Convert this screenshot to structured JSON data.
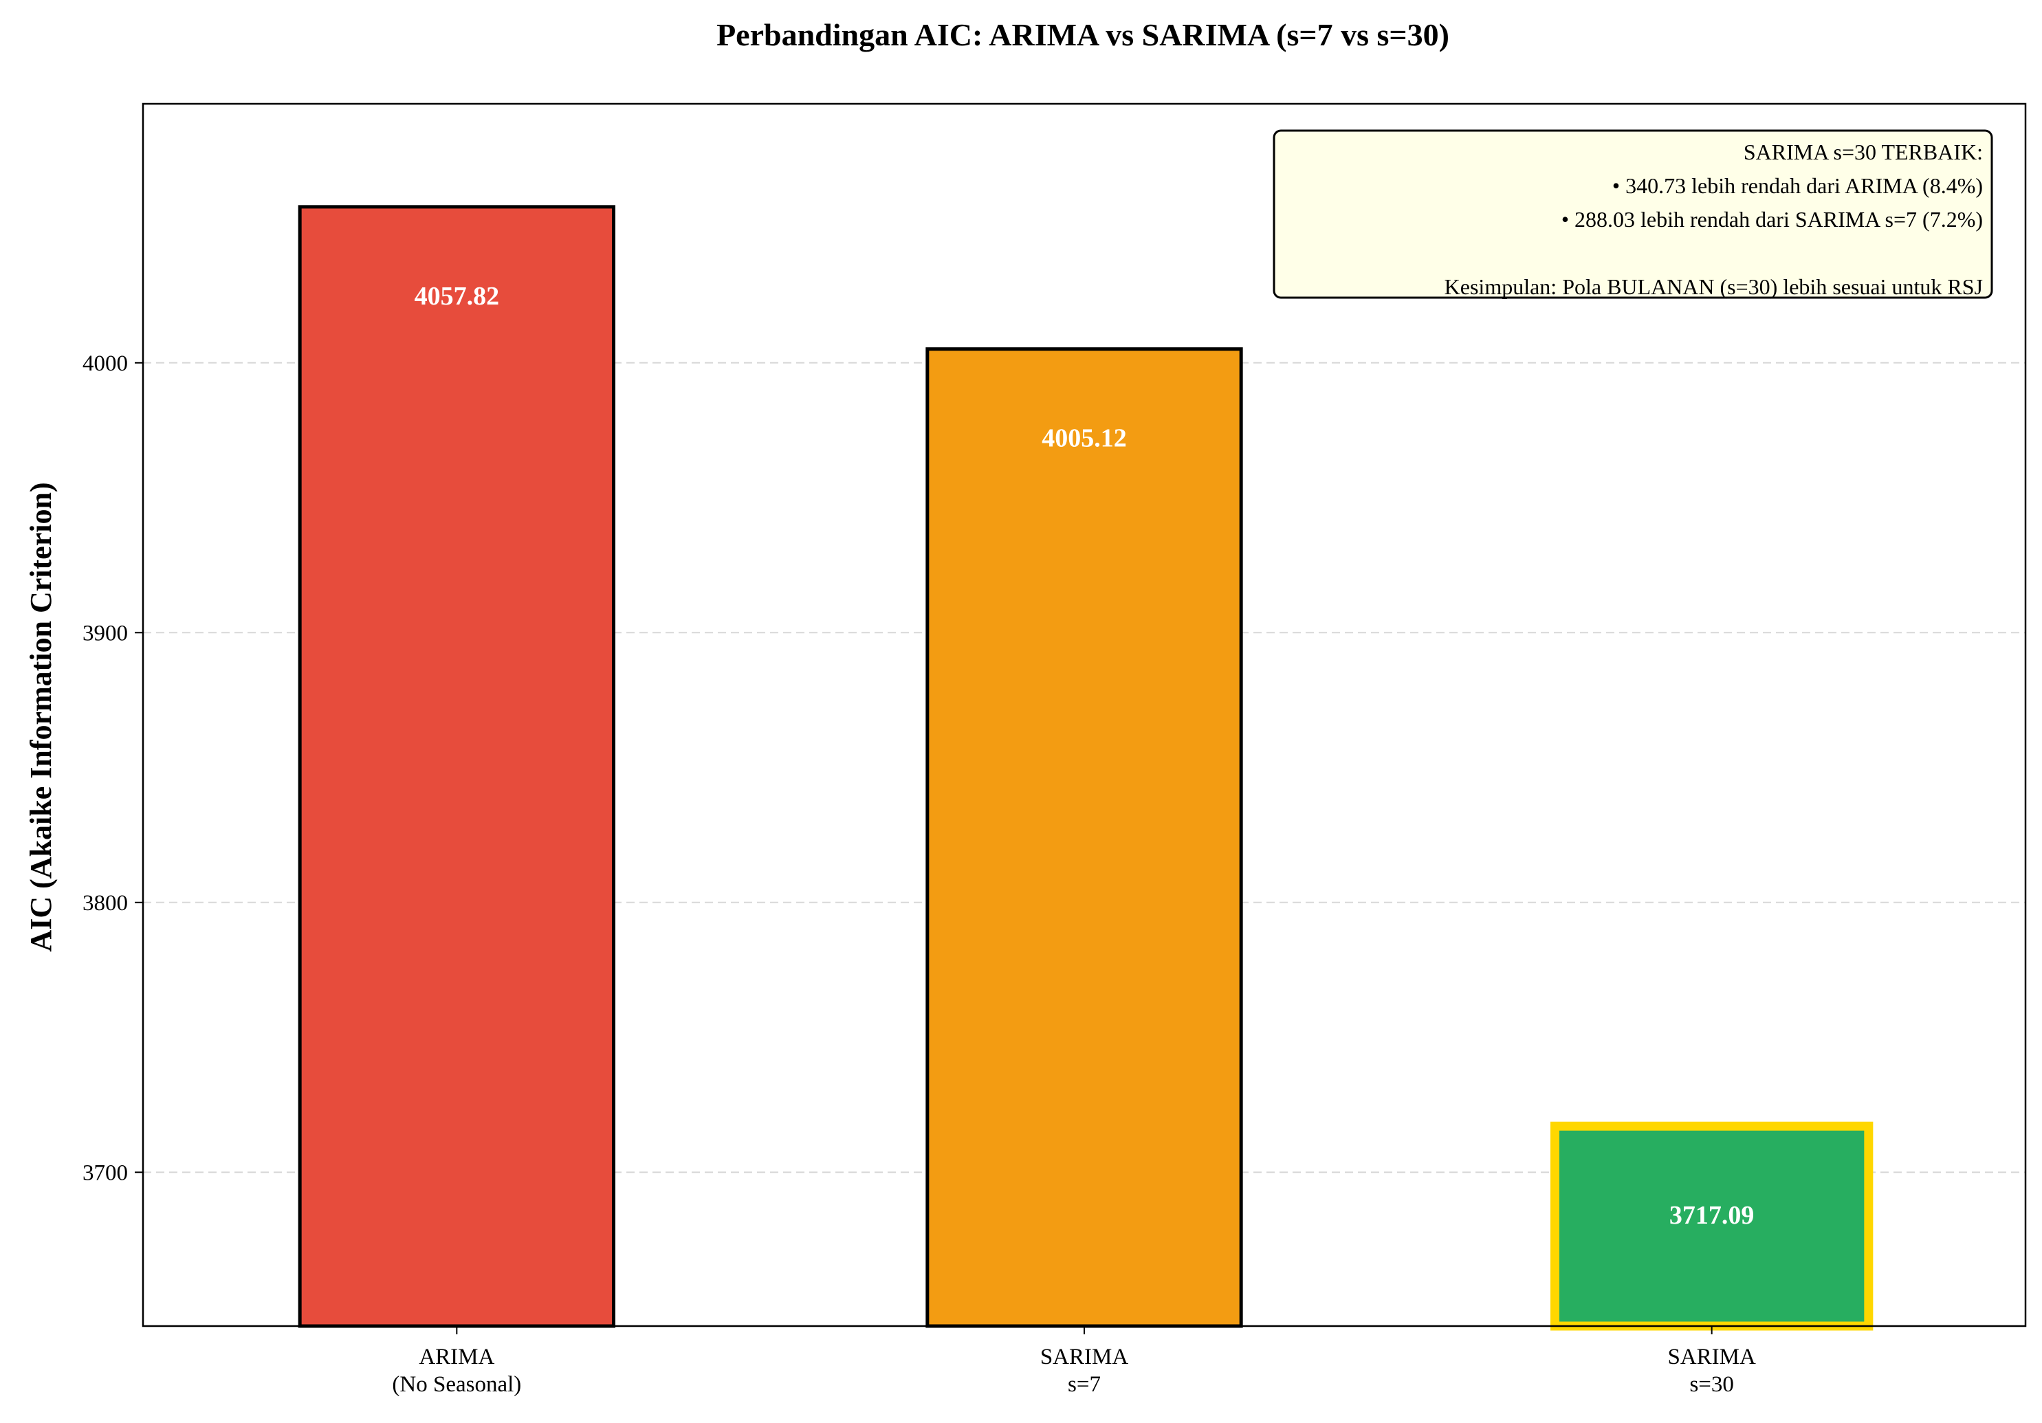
{
  "chart_data": {
    "type": "bar",
    "title": "Perbandingan AIC: ARIMA vs SARIMA (s=7 vs s=30)",
    "xlabel": "",
    "ylabel": "AIC (Akaike Information Criterion)",
    "categories": [
      [
        "ARIMA",
        "(No Seasonal)"
      ],
      [
        "SARIMA",
        "s=7"
      ],
      [
        "SARIMA",
        "s=30"
      ]
    ],
    "values": [
      4057.82,
      4005.12,
      3717.09
    ],
    "value_labels": [
      "4057.82",
      "4005.12",
      "3717.09"
    ],
    "colors": [
      "#e74c3c",
      "#f39c12",
      "#27ae60"
    ],
    "edge_colors": [
      "#000000",
      "#000000",
      "#ffd700"
    ],
    "highlighted_index": 2,
    "ylim": [
      3643,
      4096
    ],
    "yticks": [
      3700,
      3800,
      3900,
      4000
    ],
    "grid": "horizontal dashed",
    "annotation": {
      "lines": [
        "SARIMA s=30 TERBAIK:",
        "• 340.73 lebih rendah dari ARIMA (8.4%)",
        "• 288.03 lebih rendah dari SARIMA s=7 (7.2%)",
        "",
        "Kesimpulan: Pola BULANAN (s=30) lebih sesuai untuk RSJ"
      ],
      "background": "#ffffe8",
      "placement": "top-right"
    }
  }
}
